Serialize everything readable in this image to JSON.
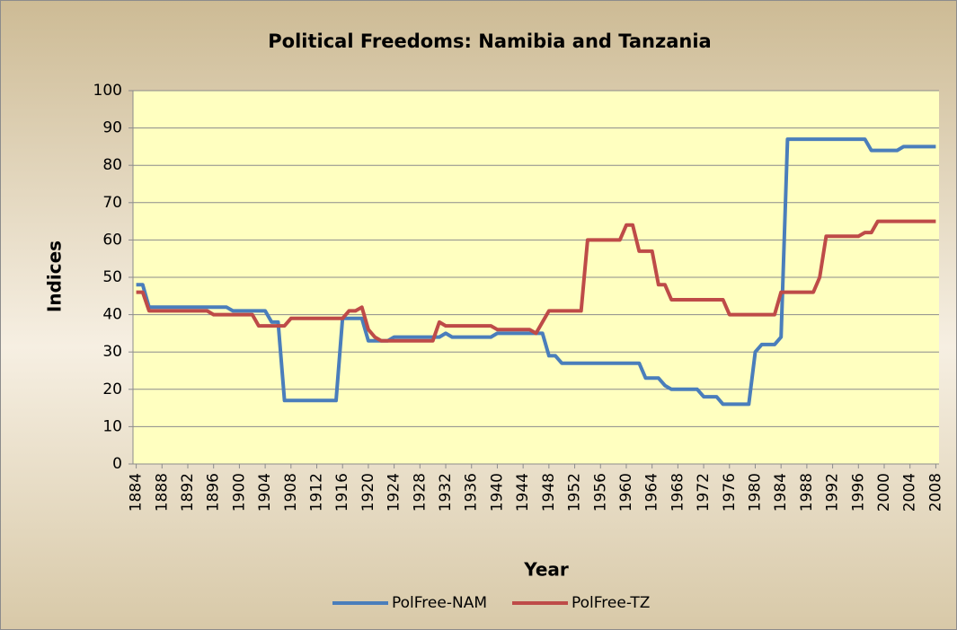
{
  "chart_data": {
    "type": "line",
    "title": "Political Freedoms: Namibia  and Tanzania",
    "xlabel": "Year",
    "ylabel": "Indices",
    "x": [
      1884,
      1885,
      1886,
      1887,
      1888,
      1889,
      1890,
      1891,
      1892,
      1893,
      1894,
      1895,
      1896,
      1897,
      1898,
      1899,
      1900,
      1901,
      1902,
      1903,
      1904,
      1905,
      1906,
      1907,
      1908,
      1909,
      1910,
      1911,
      1912,
      1913,
      1914,
      1915,
      1916,
      1917,
      1918,
      1919,
      1920,
      1921,
      1922,
      1923,
      1924,
      1925,
      1926,
      1927,
      1928,
      1929,
      1930,
      1931,
      1932,
      1933,
      1934,
      1935,
      1936,
      1937,
      1938,
      1939,
      1940,
      1941,
      1942,
      1943,
      1944,
      1945,
      1946,
      1947,
      1948,
      1949,
      1950,
      1951,
      1952,
      1953,
      1954,
      1955,
      1956,
      1957,
      1958,
      1959,
      1960,
      1961,
      1962,
      1963,
      1964,
      1965,
      1966,
      1967,
      1968,
      1969,
      1970,
      1971,
      1972,
      1973,
      1974,
      1975,
      1976,
      1977,
      1978,
      1979,
      1980,
      1981,
      1982,
      1983,
      1984,
      1985,
      1986,
      1987,
      1988,
      1989,
      1990,
      1991,
      1992,
      1993,
      1994,
      1995,
      1996,
      1997,
      1998,
      1999,
      2000,
      2001,
      2002,
      2003,
      2004,
      2005,
      2006,
      2007,
      2008
    ],
    "xlim": [
      1883.5,
      2008.5
    ],
    "xticks": [
      1884,
      1888,
      1892,
      1896,
      1900,
      1904,
      1908,
      1912,
      1916,
      1920,
      1924,
      1928,
      1932,
      1936,
      1940,
      1944,
      1948,
      1952,
      1956,
      1960,
      1964,
      1968,
      1972,
      1976,
      1980,
      1984,
      1988,
      1992,
      1996,
      2000,
      2004,
      2008
    ],
    "ylim": [
      0,
      100
    ],
    "yticks": [
      0,
      10,
      20,
      30,
      40,
      50,
      60,
      70,
      80,
      90,
      100
    ],
    "grid": true,
    "legend": "bottom",
    "series": [
      {
        "name": "PolFree-NAM",
        "color": "#4a7ebb",
        "values": [
          48,
          48,
          42,
          42,
          42,
          42,
          42,
          42,
          42,
          42,
          42,
          42,
          42,
          42,
          42,
          41,
          41,
          41,
          41,
          41,
          41,
          38,
          38,
          17,
          17,
          17,
          17,
          17,
          17,
          17,
          17,
          17,
          39,
          39,
          39,
          39,
          33,
          33,
          33,
          33,
          34,
          34,
          34,
          34,
          34,
          34,
          34,
          34,
          35,
          34,
          34,
          34,
          34,
          34,
          34,
          34,
          35,
          35,
          35,
          35,
          35,
          35,
          35,
          35,
          29,
          29,
          27,
          27,
          27,
          27,
          27,
          27,
          27,
          27,
          27,
          27,
          27,
          27,
          27,
          23,
          23,
          23,
          21,
          20,
          20,
          20,
          20,
          20,
          18,
          18,
          18,
          16,
          16,
          16,
          16,
          16,
          30,
          32,
          32,
          32,
          34,
          87,
          87,
          87,
          87,
          87,
          87,
          87,
          87,
          87,
          87,
          87,
          87,
          87,
          84,
          84,
          84,
          84,
          84,
          85,
          85,
          85,
          85,
          85,
          85
        ]
      },
      {
        "name": "PolFree-TZ",
        "color": "#be4b48",
        "values": [
          46,
          46,
          41,
          41,
          41,
          41,
          41,
          41,
          41,
          41,
          41,
          41,
          40,
          40,
          40,
          40,
          40,
          40,
          40,
          37,
          37,
          37,
          37,
          37,
          39,
          39,
          39,
          39,
          39,
          39,
          39,
          39,
          39,
          41,
          41,
          42,
          36,
          34,
          33,
          33,
          33,
          33,
          33,
          33,
          33,
          33,
          33,
          38,
          37,
          37,
          37,
          37,
          37,
          37,
          37,
          37,
          36,
          36,
          36,
          36,
          36,
          36,
          35,
          38,
          41,
          41,
          41,
          41,
          41,
          41,
          60,
          60,
          60,
          60,
          60,
          60,
          64,
          64,
          57,
          57,
          57,
          48,
          48,
          44,
          44,
          44,
          44,
          44,
          44,
          44,
          44,
          44,
          40,
          40,
          40,
          40,
          40,
          40,
          40,
          40,
          46,
          46,
          46,
          46,
          46,
          46,
          50,
          61,
          61,
          61,
          61,
          61,
          61,
          62,
          62,
          65,
          65,
          65,
          65,
          65,
          65,
          65,
          65,
          65,
          65
        ]
      }
    ]
  }
}
